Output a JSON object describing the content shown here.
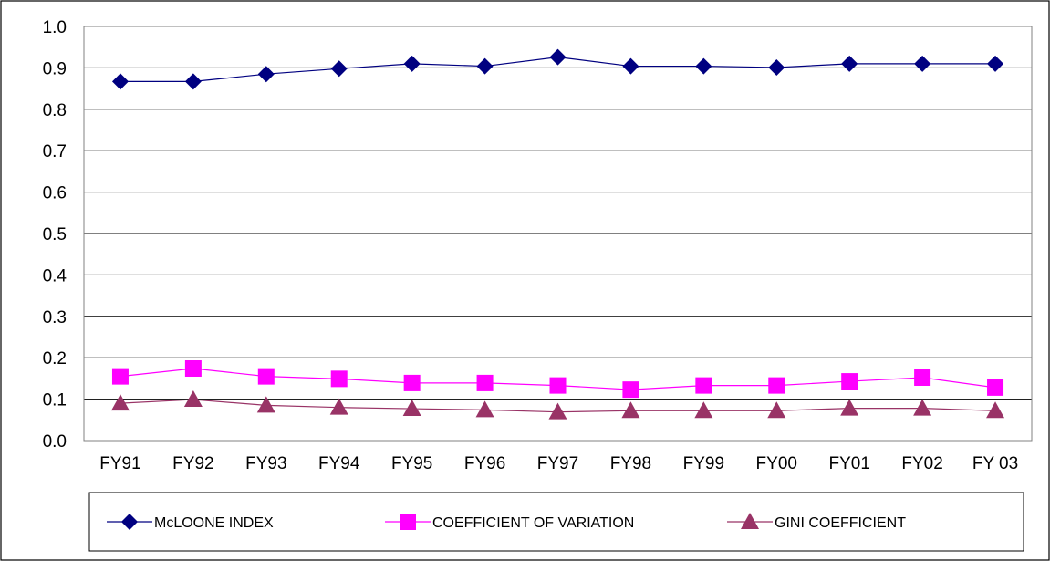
{
  "chart_data": {
    "type": "line",
    "title": "",
    "xlabel": "",
    "ylabel": "",
    "categories": [
      "FY91",
      "FY92",
      "FY93",
      "FY94",
      "FY95",
      "FY96",
      "FY97",
      "FY98",
      "FY99",
      "FY00",
      "FY01",
      "FY02",
      "FY 03"
    ],
    "ylim": [
      0,
      1.0
    ],
    "yticks": [
      "0.0",
      "0.1",
      "0.2",
      "0.3",
      "0.4",
      "0.5",
      "0.6",
      "0.7",
      "0.8",
      "0.9",
      "1.0"
    ],
    "grid": true,
    "legend_position": "bottom",
    "series": [
      {
        "name": "McLOONE INDEX",
        "marker": "diamond",
        "color": "#000080",
        "values": [
          0.867,
          0.867,
          0.885,
          0.898,
          0.91,
          0.904,
          0.926,
          0.904,
          0.904,
          0.901,
          0.91,
          0.91,
          0.91
        ]
      },
      {
        "name": "COEFFICIENT OF VARIATION",
        "marker": "square",
        "color": "#FF00FF",
        "values": [
          0.155,
          0.174,
          0.155,
          0.149,
          0.139,
          0.139,
          0.133,
          0.123,
          0.133,
          0.133,
          0.143,
          0.152,
          0.128
        ]
      },
      {
        "name": "GINI COEFFICIENT",
        "marker": "triangle",
        "color": "#993366",
        "values": [
          0.09,
          0.099,
          0.085,
          0.08,
          0.077,
          0.074,
          0.069,
          0.072,
          0.072,
          0.072,
          0.078,
          0.078,
          0.072
        ]
      }
    ]
  }
}
